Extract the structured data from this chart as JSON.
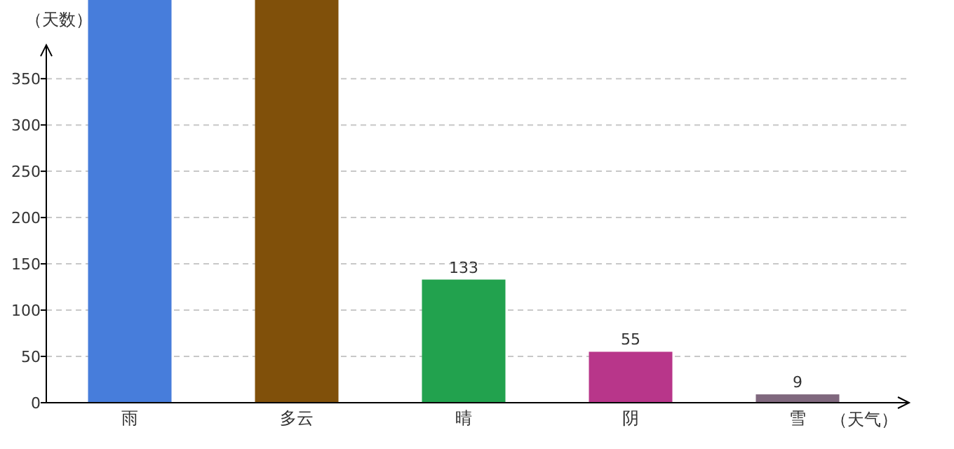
{
  "chart_data": {
    "type": "bar",
    "xlabel": "（天气）",
    "ylabel": "（天数）",
    "categories": [
      "雨",
      "多云",
      "晴",
      "阴",
      "雪"
    ],
    "values": [
      435,
      435,
      133,
      55,
      9
    ],
    "colors": [
      "#477ddb",
      "#80500a",
      "#22a24e",
      "#b8368a",
      "#80687e"
    ],
    "value_labels": [
      null,
      null,
      "133",
      "55",
      "9"
    ],
    "ylim": [
      0,
      435
    ],
    "yticks": [
      0,
      50,
      100,
      150,
      200,
      250,
      300,
      350
    ],
    "grid": "y"
  }
}
